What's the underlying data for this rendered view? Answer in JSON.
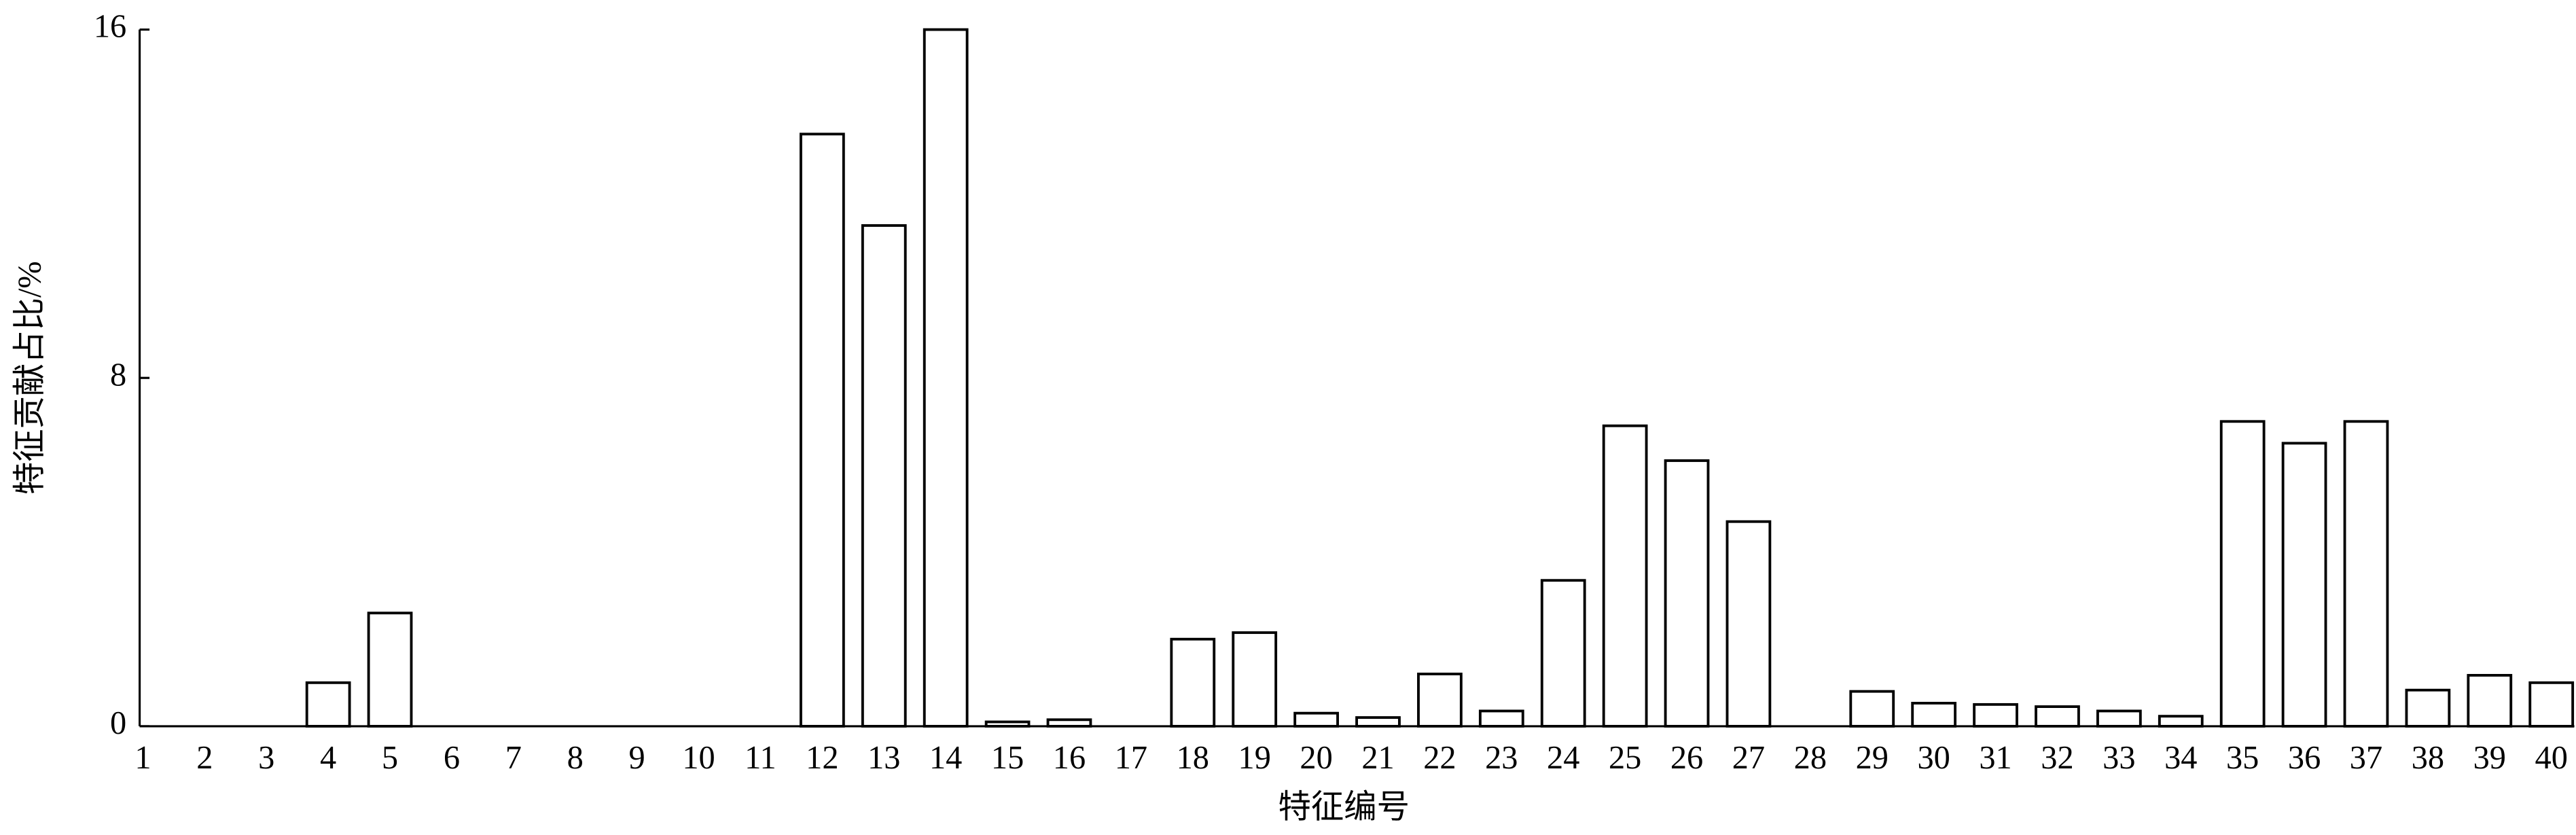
{
  "chart_data": {
    "type": "bar",
    "x_label": "特征编号",
    "y_label": "特征贡献占比/%",
    "categories": [
      "1",
      "2",
      "3",
      "4",
      "5",
      "6",
      "7",
      "8",
      "9",
      "10",
      "11",
      "12",
      "13",
      "14",
      "15",
      "16",
      "17",
      "18",
      "19",
      "20",
      "21",
      "22",
      "23",
      "24",
      "25",
      "26",
      "27",
      "28",
      "29",
      "30",
      "31",
      "32",
      "33",
      "34",
      "35",
      "36",
      "37",
      "38",
      "39",
      "40"
    ],
    "values": [
      0,
      0,
      0,
      1.0,
      2.6,
      0,
      0,
      0,
      0,
      0,
      0,
      13.6,
      11.5,
      16.0,
      0.1,
      0.15,
      0,
      2.0,
      2.15,
      0.3,
      0.2,
      1.2,
      0.35,
      3.35,
      6.9,
      6.1,
      4.7,
      0,
      0.8,
      0.53,
      0.5,
      0.45,
      0.35,
      0.23,
      7.0,
      6.5,
      7.0,
      0.83,
      1.17,
      1.0
    ],
    "color": "#ffffff",
    "edgecolor": "#000000",
    "ylim": [
      0,
      16
    ],
    "yticks": [
      0,
      8,
      16
    ],
    "grid": false
  }
}
